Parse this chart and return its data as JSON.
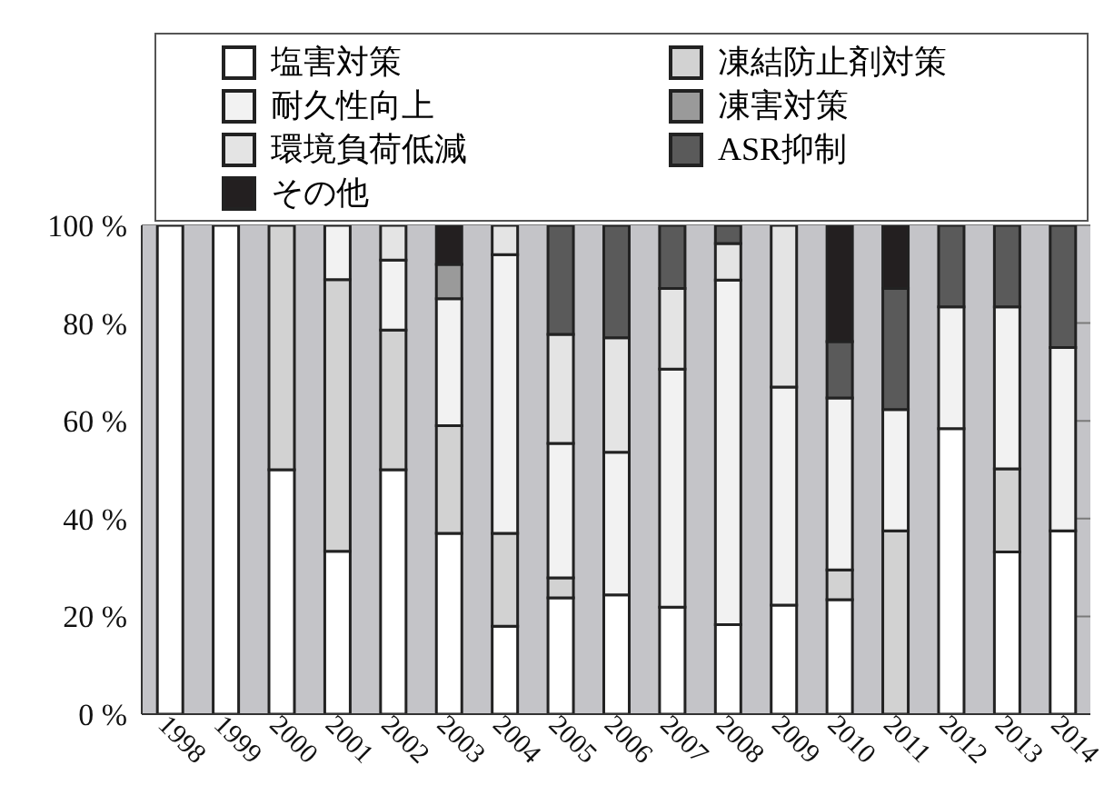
{
  "chart_data": {
    "type": "bar",
    "stacked": true,
    "categories": [
      "1998",
      "1999",
      "2000",
      "2001",
      "2002",
      "2003",
      "2004",
      "2005",
      "2006",
      "2007",
      "2008",
      "2009",
      "2010",
      "2011",
      "2012",
      "2013",
      "2014"
    ],
    "series": [
      {
        "name": "塩害対策",
        "color": "#ffffff",
        "values": [
          100,
          100,
          50,
          33.3,
          50,
          37,
          18,
          23.8,
          24.4,
          21.9,
          18.3,
          22.3,
          23.4,
          0,
          58.4,
          33.2,
          37.5
        ]
      },
      {
        "name": "凍結防止剤対策",
        "color": "#d2d2d2",
        "values": [
          0,
          0,
          50,
          55.6,
          28.6,
          22,
          19,
          4.1,
          0,
          0,
          0,
          0,
          6.1,
          37.5,
          0,
          17,
          0
        ]
      },
      {
        "name": "耐久性向上",
        "color": "#f2f2f2",
        "values": [
          0,
          0,
          0,
          11.1,
          14.3,
          26,
          57,
          27.5,
          29.2,
          48.7,
          70.5,
          44.6,
          35.2,
          24.8,
          24.9,
          33.1,
          37.5
        ]
      },
      {
        "name": "凍害対策",
        "color": "#9a9a9a",
        "values": [
          0,
          0,
          0,
          0,
          0,
          7,
          0,
          0,
          0,
          0,
          0,
          0,
          0,
          0,
          0,
          0,
          0
        ]
      },
      {
        "name": "環境負荷低減",
        "color": "#e4e4e4",
        "values": [
          0,
          0,
          0,
          0,
          7.1,
          0,
          6,
          22.3,
          23.4,
          16.5,
          7.5,
          33.1,
          0,
          0,
          0,
          0,
          0
        ]
      },
      {
        "name": "ASR抑制",
        "color": "#5a5a5a",
        "values": [
          0,
          0,
          0,
          0,
          0,
          0,
          0,
          22.3,
          23,
          12.9,
          3.7,
          0,
          11.5,
          24.8,
          16.7,
          16.7,
          25
        ]
      },
      {
        "name": "その他",
        "color": "#231f20",
        "values": [
          0,
          0,
          0,
          0,
          0,
          8,
          0,
          0,
          0,
          0,
          0,
          0,
          23.8,
          12.9,
          0,
          0,
          0
        ]
      }
    ],
    "ylim": [
      0,
      100
    ],
    "yticks": [
      {
        "value": 0,
        "label": "0 %"
      },
      {
        "value": 20,
        "label": "20 %"
      },
      {
        "value": 40,
        "label": "40 %"
      },
      {
        "value": 60,
        "label": "60 %"
      },
      {
        "value": 80,
        "label": "80 %"
      },
      {
        "value": 100,
        "label": "100 %"
      }
    ],
    "grid": "y",
    "legend": "top"
  }
}
